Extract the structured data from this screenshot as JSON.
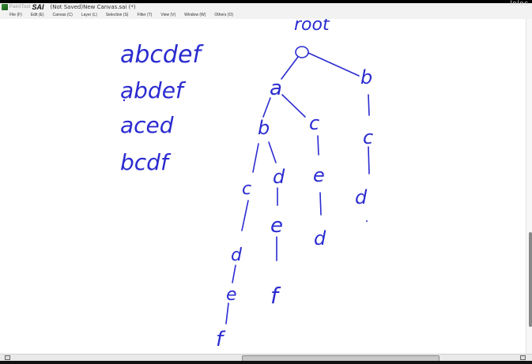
{
  "window": {
    "brand": "PaintTool",
    "app_name": "SAI",
    "document_title": "(Not Saved)New Canvas.sai (*)",
    "controls": "lolos"
  },
  "menu": [
    "File (F)",
    "Edit (E)",
    "Canvas (C)",
    "Layer (L)",
    "Selection (S)",
    "Filter (T)",
    "View (V)",
    "Window (W)",
    "Others (O)"
  ],
  "canvas": {
    "ink_color": "#2b2bd1",
    "words": [
      "abcdef",
      "abdef",
      "aced",
      "bcdf"
    ],
    "tree": {
      "root_label": "root",
      "node_labels": [
        "a",
        "b",
        "b",
        "c",
        "c",
        "c",
        "d",
        "d",
        "d",
        "d",
        "e",
        "e",
        "e",
        "f",
        "f"
      ]
    }
  }
}
